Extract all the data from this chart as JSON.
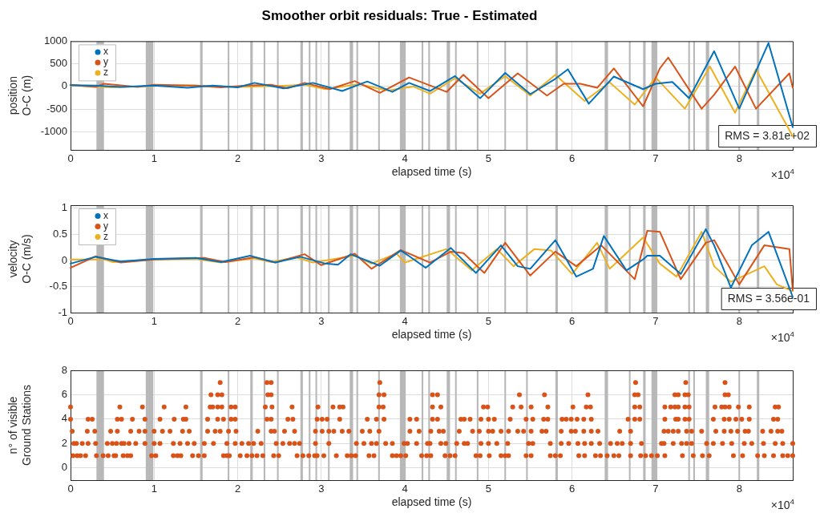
{
  "chart_data": [
    {
      "type": "line",
      "title": "Smoother orbit residuals: True - Estimated",
      "xlabel": "elapsed time (s)",
      "ylabel": "position\nO-C (m)",
      "xlim": [
        0,
        8.64
      ],
      "xticks": [
        0,
        1,
        2,
        3,
        4,
        5,
        6,
        7,
        8
      ],
      "ylim": [
        -1400,
        1000
      ],
      "yticks": [
        -1000,
        -500,
        0,
        500,
        1000
      ],
      "grid": true,
      "legend": "top left",
      "annotations": [
        "×10$^{4}$",
        "RMS = 3.81e+02"
      ],
      "bands": [
        {
          "axis": "x",
          "from": 0.31,
          "to": 0.4
        },
        {
          "axis": "x",
          "from": 0.9,
          "to": 0.99
        },
        {
          "axis": "x",
          "from": 1.55,
          "to": 1.58
        },
        {
          "axis": "x",
          "from": 1.88,
          "to": 1.9
        },
        {
          "axis": "x",
          "from": 2.15,
          "to": 2.18
        },
        {
          "axis": "x",
          "from": 2.31,
          "to": 2.33
        },
        {
          "axis": "x",
          "from": 2.47,
          "to": 2.49
        },
        {
          "axis": "x",
          "from": 2.75,
          "to": 2.78
        },
        {
          "axis": "x",
          "from": 2.85,
          "to": 2.87
        },
        {
          "axis": "x",
          "from": 2.93,
          "to": 2.95
        },
        {
          "axis": "x",
          "from": 3.08,
          "to": 3.1
        },
        {
          "axis": "x",
          "from": 3.34,
          "to": 3.38
        },
        {
          "axis": "x",
          "from": 3.42,
          "to": 3.44
        },
        {
          "axis": "x",
          "from": 3.68,
          "to": 3.7
        },
        {
          "axis": "x",
          "from": 3.94,
          "to": 4.01
        },
        {
          "axis": "x",
          "from": 4.2,
          "to": 4.22
        },
        {
          "axis": "x",
          "from": 4.28,
          "to": 4.3
        },
        {
          "axis": "x",
          "from": 4.5,
          "to": 4.54
        },
        {
          "axis": "x",
          "from": 4.6,
          "to": 4.62
        },
        {
          "axis": "x",
          "from": 4.86,
          "to": 4.88
        },
        {
          "axis": "x",
          "from": 5.19,
          "to": 5.21
        },
        {
          "axis": "x",
          "from": 5.45,
          "to": 5.47
        },
        {
          "axis": "x",
          "from": 5.8,
          "to": 5.83
        },
        {
          "axis": "x",
          "from": 6.39,
          "to": 6.43
        },
        {
          "axis": "x",
          "from": 6.68,
          "to": 6.7
        },
        {
          "axis": "x",
          "from": 6.85,
          "to": 6.88
        },
        {
          "axis": "x",
          "from": 6.95,
          "to": 7.02
        },
        {
          "axis": "x",
          "from": 7.39,
          "to": 7.41
        },
        {
          "axis": "x",
          "from": 7.45,
          "to": 7.47
        },
        {
          "axis": "x",
          "from": 7.6,
          "to": 7.64
        },
        {
          "axis": "x",
          "from": 7.99,
          "to": 8.01
        },
        {
          "axis": "x",
          "from": 8.21,
          "to": 8.24
        }
      ],
      "series": [
        {
          "name": "x",
          "color": "#0072bd",
          "x": [
            0,
            0.3,
            0.6,
            1,
            1.4,
            1.7,
            2,
            2.2,
            2.55,
            2.9,
            3.25,
            3.55,
            3.85,
            4.05,
            4.3,
            4.6,
            4.9,
            5.2,
            5.5,
            5.8,
            5.95,
            6.2,
            6.5,
            6.85,
            7,
            7.2,
            7.4,
            7.7,
            8,
            8.35,
            8.64
          ],
          "values": [
            30,
            20,
            -10,
            20,
            -30,
            20,
            -20,
            80,
            -40,
            80,
            -100,
            110,
            -120,
            80,
            -100,
            230,
            -260,
            300,
            -170,
            170,
            380,
            -380,
            220,
            -60,
            60,
            100,
            -260,
            780,
            -490,
            960,
            -900
          ]
        },
        {
          "name": "y",
          "color": "#d95319",
          "x": [
            0,
            0.3,
            0.4,
            0.8,
            1,
            1.5,
            1.8,
            2.1,
            2.4,
            2.6,
            2.8,
            3.1,
            3.4,
            3.7,
            4.05,
            4.5,
            4.7,
            5,
            5.35,
            5.7,
            5.9,
            6.1,
            6.3,
            6.5,
            6.85,
            7.05,
            7.15,
            7.55,
            7.7,
            7.95,
            8.2,
            8.6,
            8.64
          ],
          "values": [
            40,
            -10,
            60,
            -10,
            40,
            20,
            -20,
            20,
            40,
            -40,
            80,
            -60,
            120,
            -140,
            200,
            -120,
            260,
            -260,
            290,
            -200,
            60,
            60,
            -30,
            400,
            -440,
            400,
            640,
            -490,
            -180,
            440,
            -490,
            290,
            -30
          ]
        },
        {
          "name": "z",
          "color": "#edb120",
          "x": [
            0,
            0.5,
            1,
            1.5,
            2,
            2.5,
            2.8,
            3.05,
            3.45,
            3.8,
            4.1,
            4.3,
            4.6,
            4.9,
            5.2,
            5.5,
            5.8,
            6.15,
            6.45,
            6.75,
            7,
            7.35,
            7.65,
            7.95,
            8.2,
            8.64
          ],
          "values": [
            20,
            -20,
            10,
            20,
            -10,
            10,
            40,
            -60,
            50,
            -90,
            0,
            -160,
            180,
            -160,
            230,
            -200,
            260,
            -320,
            90,
            -400,
            200,
            -490,
            440,
            -580,
            380,
            -1100
          ]
        }
      ]
    },
    {
      "type": "line",
      "xlabel": "elapsed time (s)",
      "ylabel": "velocity\nO-C (m/s)",
      "xlim": [
        0,
        8.64
      ],
      "xticks": [
        0,
        1,
        2,
        3,
        4,
        5,
        6,
        7,
        8
      ],
      "ylim": [
        -1,
        1.06
      ],
      "yticks": [
        -1,
        -0.5,
        0,
        0.5,
        1
      ],
      "grid": true,
      "legend": "top left",
      "annotations": [
        "×10$^{4}$",
        "RMS = 3.56e-01"
      ],
      "bands": [
        {
          "axis": "x",
          "from": 0.31,
          "to": 0.4
        },
        {
          "axis": "x",
          "from": 0.9,
          "to": 0.99
        },
        {
          "axis": "x",
          "from": 1.55,
          "to": 1.58
        },
        {
          "axis": "x",
          "from": 1.88,
          "to": 1.9
        },
        {
          "axis": "x",
          "from": 2.15,
          "to": 2.18
        },
        {
          "axis": "x",
          "from": 2.31,
          "to": 2.33
        },
        {
          "axis": "x",
          "from": 2.47,
          "to": 2.49
        },
        {
          "axis": "x",
          "from": 2.75,
          "to": 2.78
        },
        {
          "axis": "x",
          "from": 2.85,
          "to": 2.87
        },
        {
          "axis": "x",
          "from": 2.93,
          "to": 2.95
        },
        {
          "axis": "x",
          "from": 3.08,
          "to": 3.1
        },
        {
          "axis": "x",
          "from": 3.34,
          "to": 3.38
        },
        {
          "axis": "x",
          "from": 3.42,
          "to": 3.44
        },
        {
          "axis": "x",
          "from": 3.68,
          "to": 3.7
        },
        {
          "axis": "x",
          "from": 3.94,
          "to": 4.01
        },
        {
          "axis": "x",
          "from": 4.2,
          "to": 4.22
        },
        {
          "axis": "x",
          "from": 4.28,
          "to": 4.3
        },
        {
          "axis": "x",
          "from": 4.5,
          "to": 4.54
        },
        {
          "axis": "x",
          "from": 4.6,
          "to": 4.62
        },
        {
          "axis": "x",
          "from": 4.86,
          "to": 4.88
        },
        {
          "axis": "x",
          "from": 5.19,
          "to": 5.21
        },
        {
          "axis": "x",
          "from": 5.45,
          "to": 5.47
        },
        {
          "axis": "x",
          "from": 5.8,
          "to": 5.83
        },
        {
          "axis": "x",
          "from": 6.39,
          "to": 6.43
        },
        {
          "axis": "x",
          "from": 6.68,
          "to": 6.7
        },
        {
          "axis": "x",
          "from": 6.85,
          "to": 6.88
        },
        {
          "axis": "x",
          "from": 6.95,
          "to": 7.02
        },
        {
          "axis": "x",
          "from": 7.39,
          "to": 7.41
        },
        {
          "axis": "x",
          "from": 7.45,
          "to": 7.47
        },
        {
          "axis": "x",
          "from": 7.6,
          "to": 7.64
        },
        {
          "axis": "x",
          "from": 7.99,
          "to": 8.01
        },
        {
          "axis": "x",
          "from": 8.21,
          "to": 8.24
        }
      ],
      "series": [
        {
          "name": "x",
          "color": "#0072bd",
          "x": [
            0,
            0.3,
            0.6,
            1,
            1.5,
            1.8,
            2.15,
            2.45,
            2.75,
            3.05,
            3.2,
            3.35,
            3.7,
            3.95,
            4,
            4.25,
            4.55,
            4.85,
            5.15,
            5.35,
            5.5,
            5.8,
            6.05,
            6.25,
            6.38,
            6.65,
            6.85,
            6.9,
            7.05,
            7.3,
            7.6,
            7.7,
            7.9,
            8.15,
            8.35,
            8.64
          ],
          "values": [
            -0.06,
            0.07,
            -0.02,
            0.03,
            0.05,
            -0.03,
            0.09,
            -0.04,
            0.07,
            -0.06,
            -0.08,
            0.12,
            -0.1,
            0.19,
            0.14,
            -0.14,
            0.24,
            -0.24,
            0.29,
            -0.11,
            -0.16,
            0.39,
            -0.31,
            -0.16,
            0.47,
            -0.19,
            0.02,
            0.09,
            0.09,
            -0.26,
            0.6,
            0.29,
            -0.52,
            0.29,
            0.55,
            -0.7
          ]
        },
        {
          "name": "y",
          "color": "#d95319",
          "x": [
            0,
            0.3,
            0.6,
            1,
            1.6,
            1.85,
            2.2,
            2.45,
            2.8,
            3,
            3.4,
            3.6,
            3.95,
            4.3,
            4.55,
            4.7,
            4.95,
            5.2,
            5.5,
            5.8,
            6.05,
            6.35,
            6.75,
            6.9,
            7.05,
            7.3,
            7.6,
            7.7,
            8,
            8.3,
            8.6,
            8.64
          ],
          "values": [
            -0.14,
            0.08,
            -0.04,
            0.02,
            0.05,
            -0.03,
            0.06,
            -0.04,
            0.12,
            -0.09,
            0.13,
            -0.16,
            0.2,
            -0.04,
            0.17,
            0.14,
            -0.24,
            0.34,
            -0.29,
            0.17,
            -0.11,
            0.29,
            -0.36,
            0.57,
            0.55,
            -0.36,
            0.34,
            0.39,
            -0.46,
            0.29,
            0.22,
            -0.57
          ]
        },
        {
          "name": "z",
          "color": "#edb120",
          "x": [
            0,
            0.4,
            0.5,
            1,
            1.5,
            1.8,
            2.2,
            2.4,
            2.7,
            2.9,
            3.4,
            3.6,
            3.9,
            4,
            4.5,
            4.8,
            5.1,
            5.3,
            5.55,
            5.75,
            6,
            6.3,
            6.45,
            6.85,
            7.05,
            7.25,
            7.55,
            7.7,
            7.9,
            8.3,
            8.45,
            8.64
          ],
          "values": [
            0.02,
            0.02,
            -0.03,
            0.02,
            0.03,
            -0.04,
            0.04,
            -0.03,
            0.06,
            -0.04,
            0.09,
            -0.06,
            0.13,
            -0.04,
            0.22,
            -0.19,
            0.22,
            -0.11,
            0.22,
            0.19,
            -0.26,
            0.34,
            -0.16,
            0.44,
            -0.06,
            -0.31,
            0.55,
            -0.11,
            -0.41,
            -0.11,
            -0.46,
            -0.59
          ]
        }
      ]
    },
    {
      "type": "scatter",
      "xlabel": "elapsed time (s)",
      "ylabel": "n° of visible\nGround Stations",
      "xlim": [
        0,
        8.64
      ],
      "xticks": [
        0,
        1,
        2,
        3,
        4,
        5,
        6,
        7,
        8
      ],
      "ylim": [
        -1,
        8
      ],
      "yticks": [
        0,
        2,
        4,
        6,
        8
      ],
      "grid": true,
      "marker": "circle",
      "annotations": [
        "×10$^{4}$"
      ],
      "bands": [
        {
          "axis": "x",
          "from": 0.31,
          "to": 0.4
        },
        {
          "axis": "x",
          "from": 0.9,
          "to": 0.99
        },
        {
          "axis": "x",
          "from": 1.55,
          "to": 1.58
        },
        {
          "axis": "x",
          "from": 1.88,
          "to": 1.9
        },
        {
          "axis": "x",
          "from": 2.15,
          "to": 2.18
        },
        {
          "axis": "x",
          "from": 2.31,
          "to": 2.33
        },
        {
          "axis": "x",
          "from": 2.47,
          "to": 2.49
        },
        {
          "axis": "x",
          "from": 2.75,
          "to": 2.78
        },
        {
          "axis": "x",
          "from": 2.85,
          "to": 2.87
        },
        {
          "axis": "x",
          "from": 2.93,
          "to": 2.95
        },
        {
          "axis": "x",
          "from": 3.08,
          "to": 3.1
        },
        {
          "axis": "x",
          "from": 3.34,
          "to": 3.38
        },
        {
          "axis": "x",
          "from": 3.42,
          "to": 3.44
        },
        {
          "axis": "x",
          "from": 3.68,
          "to": 3.7
        },
        {
          "axis": "x",
          "from": 3.94,
          "to": 4.01
        },
        {
          "axis": "x",
          "from": 4.2,
          "to": 4.22
        },
        {
          "axis": "x",
          "from": 4.28,
          "to": 4.3
        },
        {
          "axis": "x",
          "from": 4.5,
          "to": 4.54
        },
        {
          "axis": "x",
          "from": 4.6,
          "to": 4.62
        },
        {
          "axis": "x",
          "from": 4.86,
          "to": 4.88
        },
        {
          "axis": "x",
          "from": 5.19,
          "to": 5.21
        },
        {
          "axis": "x",
          "from": 5.45,
          "to": 5.47
        },
        {
          "axis": "x",
          "from": 5.8,
          "to": 5.83
        },
        {
          "axis": "x",
          "from": 6.39,
          "to": 6.43
        },
        {
          "axis": "x",
          "from": 6.68,
          "to": 6.7
        },
        {
          "axis": "x",
          "from": 6.85,
          "to": 6.88
        },
        {
          "axis": "x",
          "from": 6.95,
          "to": 7.02
        },
        {
          "axis": "x",
          "from": 7.39,
          "to": 7.41
        },
        {
          "axis": "x",
          "from": 7.45,
          "to": 7.47
        },
        {
          "axis": "x",
          "from": 7.6,
          "to": 7.64
        },
        {
          "axis": "x",
          "from": 7.99,
          "to": 8.01
        },
        {
          "axis": "x",
          "from": 8.21,
          "to": 8.24
        }
      ],
      "series": [
        {
          "color": "#d95319",
          "x": [
            0.03,
            0.08,
            0.12,
            0.18,
            0.31,
            0.39,
            0.45,
            0.52,
            0.54,
            0.63,
            0.68,
            0.72,
            0.97,
            1.02,
            1.23,
            1.28,
            1.32,
            1.46,
            1.53,
            1.6,
            1.83,
            1.87,
            1.9,
            2.03,
            2.11,
            2.17,
            2.23,
            2.3,
            2.43,
            2.49,
            2.71,
            2.78,
            2.85,
            2.92,
            2.95,
            3.03,
            3.18,
            3.31,
            3.36,
            3.41,
            3.57,
            3.63,
            3.85,
            3.9,
            3.95,
            4.01,
            4.2,
            4.26,
            4.31,
            4.48,
            4.54,
            4.6,
            4.85,
            4.9,
            5.01,
            5.15,
            5.2,
            5.24,
            5.45,
            5.51,
            5.74,
            5.8,
            5.86,
            6.08,
            6.15,
            6.28,
            6.34,
            6.42,
            6.5,
            6.56,
            6.7,
            6.82,
            6.88,
            6.95,
            7.02,
            7.11,
            7.32,
            7.45,
            7.56,
            7.64,
            7.93,
            8.04,
            8.22,
            8.3,
            8.41,
            8.52,
            8.58,
            8.64,
            0.04,
            0.07,
            0.14,
            0.21,
            0.3,
            0.44,
            0.5,
            0.55,
            0.61,
            0.64,
            0.7,
            0.78,
            0.89,
            1,
            1.07,
            1.23,
            1.31,
            1.4,
            1.48,
            1.6,
            1.71,
            1.87,
            1.97,
            2.05,
            2.13,
            2.19,
            2.28,
            2.46,
            2.54,
            2.62,
            2.68,
            2.74,
            2.93,
            3.09,
            3.42,
            3.51,
            3.6,
            3.66,
            3.77,
            3.85,
            3.99,
            4.03,
            4.14,
            4.27,
            4.3,
            4.43,
            4.49,
            4.62,
            4.71,
            4.75,
            4.91,
            5,
            5.1,
            5.23,
            5.48,
            5.53,
            5.74,
            5.87,
            5.96,
            6.07,
            6.15,
            6.23,
            6.33,
            6.46,
            6.54,
            6.6,
            6.7,
            6.83,
            7.07,
            7.1,
            7.21,
            7.31,
            7.37,
            7.43,
            7.61,
            7.69,
            7.8,
            7.91,
            8.06,
            8.15,
            8.29,
            8.43,
            8.52,
            8.64,
            0.02,
            0.2,
            0.29,
            0.48,
            0.56,
            0.72,
            0.82,
            0.89,
            1,
            1.1,
            1.19,
            1.34,
            1.42,
            1.64,
            1.73,
            1.79,
            1.89,
            1.98,
            2.24,
            2.4,
            2.44,
            2.56,
            2.68,
            2.93,
            3.01,
            3.09,
            3.15,
            3.25,
            3.33,
            3.49,
            3.58,
            3.69,
            4.06,
            4.17,
            4.31,
            4.41,
            4.46,
            4.65,
            4.81,
            4.89,
            5,
            5.05,
            5.15,
            5.24,
            5.35,
            5.42,
            5.51,
            5.64,
            5.69,
            5.87,
            5.99,
            6.04,
            6.14,
            6.23,
            6.31,
            6.57,
            6.7,
            7.1,
            7.15,
            7.21,
            7.27,
            7.37,
            7.43,
            7.55,
            7.72,
            7.82,
            7.9,
            7.98,
            8.07,
            8.11,
            8.28,
            8.38,
            8.46,
            8.51,
            0,
            0.21,
            0.26,
            0.56,
            0.61,
            0.74,
            0.89,
            1.07,
            1.24,
            1.35,
            1.38,
            1.64,
            1.76,
            1.83,
            1.92,
            1.97,
            2.35,
            2.4,
            2.6,
            2.66,
            2.95,
            3.01,
            3.07,
            3.22,
            3.55,
            3.66,
            3.75,
            4.06,
            4.14,
            4.33,
            4.39,
            4.67,
            4.71,
            4.78,
            4.91,
            5,
            5.07,
            5.26,
            5.45,
            5.53,
            5.66,
            5.71,
            5.88,
            5.93,
            5.99,
            6.06,
            6.14,
            6.23,
            6.67,
            6.75,
            6.81,
            7.11,
            7.24,
            7.27,
            7.35,
            7.4,
            7.69,
            7.82,
            7.88,
            7.96,
            8.03,
            8.12,
            8.41,
            8.46,
            0,
            0.59,
            0.86,
            1.12,
            1.38,
            1.67,
            1.7,
            1.76,
            1.81,
            1.92,
            1.97,
            2.33,
            2.41,
            2.65,
            2.96,
            3.14,
            3.22,
            3.26,
            3.69,
            3.74,
            4.33,
            4.43,
            4.94,
            4.99,
            5.29,
            5.39,
            5.51,
            5.71,
            6.01,
            6.17,
            6.22,
            6.75,
            6.81,
            7.11,
            7.18,
            7.23,
            7.27,
            7.35,
            7.4,
            7.71,
            7.79,
            7.83,
            7.88,
            7.99,
            8.12,
            8.43,
            8.47,
            1.68,
            1.76,
            1.81,
            2.36,
            2.4,
            3.69,
            3.75,
            4.33,
            4.39,
            5.37,
            5.67,
            6.19,
            6.75,
            6.79,
            7.23,
            7.27,
            7.35,
            7.39,
            7.83,
            7.87,
            1.79,
            2.35,
            2.4,
            3.7,
            6.76,
            7.36,
            7.83
          ],
          "values": [
            1,
            1,
            1,
            1,
            1,
            1,
            1,
            1,
            1,
            1,
            1,
            1,
            1,
            1,
            1,
            1,
            1,
            1,
            1,
            1,
            1,
            1,
            1,
            1,
            1,
            1,
            1,
            1,
            1,
            1,
            1,
            1,
            1,
            1,
            1,
            1,
            1,
            1,
            1,
            1,
            1,
            1,
            1,
            1,
            1,
            1,
            1,
            1,
            1,
            1,
            1,
            1,
            1,
            1,
            1,
            1,
            1,
            1,
            1,
            1,
            1,
            1,
            1,
            1,
            1,
            1,
            1,
            1,
            1,
            1,
            1,
            1,
            1,
            1,
            1,
            1,
            1,
            1,
            1,
            1,
            1,
            1,
            1,
            1,
            1,
            1,
            1,
            1,
            2,
            2,
            2,
            2,
            2,
            2,
            2,
            2,
            2,
            2,
            2,
            2,
            2,
            2,
            2,
            2,
            2,
            2,
            2,
            2,
            2,
            2,
            2,
            2,
            2,
            2,
            2,
            2,
            2,
            2,
            2,
            2,
            2,
            2,
            2,
            2,
            2,
            2,
            2,
            2,
            2,
            2,
            2,
            2,
            2,
            2,
            2,
            2,
            2,
            2,
            2,
            2,
            2,
            2,
            2,
            2,
            2,
            2,
            2,
            2,
            2,
            2,
            2,
            2,
            2,
            2,
            2,
            2,
            2,
            2,
            2,
            2,
            2,
            2,
            2,
            2,
            2,
            2,
            2,
            2,
            2,
            2,
            2,
            2,
            3,
            3,
            3,
            3,
            3,
            3,
            3,
            3,
            3,
            3,
            3,
            3,
            3,
            3,
            3,
            3,
            3,
            3,
            3,
            3,
            3,
            3,
            3,
            3,
            3,
            3,
            3,
            3,
            3,
            3,
            3,
            3,
            3,
            3,
            3,
            3,
            3,
            3,
            3,
            3,
            3,
            3,
            3,
            3,
            3,
            3,
            3,
            3,
            3,
            3,
            3,
            3,
            3,
            3,
            3,
            3,
            3,
            3,
            3,
            3,
            3,
            3,
            3,
            3,
            3,
            3,
            3,
            3,
            3,
            3,
            3,
            3,
            3,
            3,
            4,
            4,
            4,
            4,
            4,
            4,
            4,
            4,
            4,
            4,
            4,
            4,
            4,
            4,
            4,
            4,
            4,
            4,
            4,
            4,
            4,
            4,
            4,
            4,
            4,
            4,
            4,
            4,
            4,
            4,
            4,
            4,
            4,
            4,
            4,
            4,
            4,
            4,
            4,
            4,
            4,
            4,
            4,
            4,
            4,
            4,
            4,
            4,
            4,
            4,
            4,
            4,
            4,
            4,
            4,
            4,
            4,
            4,
            4,
            4,
            4,
            4,
            4,
            4,
            5,
            5,
            5,
            5,
            5,
            5,
            5,
            5,
            5,
            5,
            5,
            5,
            5,
            5,
            5,
            5,
            5,
            5,
            5,
            5,
            5,
            5,
            5,
            5,
            5,
            5,
            5,
            5,
            5,
            5,
            5,
            5,
            5,
            5,
            5,
            5,
            5,
            5,
            5,
            5,
            5,
            5,
            5,
            5,
            5,
            5,
            5,
            6,
            6,
            6,
            6,
            6,
            6,
            6,
            6,
            6,
            6,
            6,
            6,
            6,
            6,
            6,
            6,
            6,
            6,
            6,
            6,
            7,
            7,
            7,
            7,
            7,
            7,
            7
          ]
        }
      ]
    }
  ]
}
